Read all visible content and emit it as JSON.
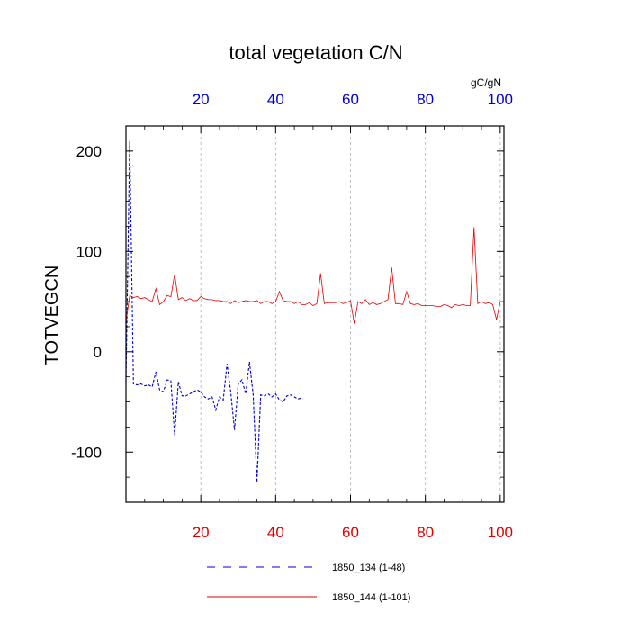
{
  "chart_data": {
    "type": "line",
    "title": "total vegetation C/N",
    "ylabel": "TOTVEGCN",
    "top_axis_label": "gC/gN",
    "xlim": [
      0,
      101
    ],
    "ylim": [
      -150,
      225
    ],
    "x_ticks": [
      "20",
      "40",
      "60",
      "80",
      "100"
    ],
    "y_ticks": [
      "200",
      "100",
      "0",
      "-100"
    ],
    "grid": "vertical dashed",
    "bottom_axis_color": "#e00000",
    "top_axis_color": "#0000d0",
    "legend_position": "bottom",
    "series": [
      {
        "name": "1850_134 (1-48)",
        "color": "#0000cc",
        "style": "dashed",
        "x": [
          0,
          1,
          2,
          3,
          4,
          5,
          6,
          7,
          8,
          9,
          10,
          11,
          12,
          13,
          14,
          15,
          16,
          17,
          18,
          19,
          20,
          21,
          22,
          23,
          24,
          25,
          26,
          27,
          28,
          29,
          30,
          31,
          32,
          33,
          34,
          35,
          36,
          37,
          38,
          39,
          40,
          41,
          42,
          43,
          44,
          45,
          46,
          47
        ],
        "y": [
          -30,
          210,
          -32,
          -33,
          -32,
          -34,
          -33,
          -35,
          -20,
          -38,
          -40,
          -28,
          -29,
          -83,
          -30,
          -44,
          -44,
          -42,
          -40,
          -38,
          -40,
          -45,
          -47,
          -45,
          -58,
          -45,
          -48,
          -12,
          -40,
          -78,
          -32,
          -28,
          -42,
          -10,
          -43,
          -130,
          -43,
          -44,
          -42,
          -45,
          -42,
          -48,
          -50,
          -44,
          -43,
          -45,
          -47,
          -46
        ]
      },
      {
        "name": "1850_144 (1-101)",
        "color": "#e00000",
        "style": "solid",
        "x": [
          0,
          1,
          2,
          3,
          4,
          5,
          6,
          7,
          8,
          9,
          10,
          11,
          12,
          13,
          14,
          15,
          16,
          17,
          18,
          19,
          20,
          21,
          22,
          23,
          24,
          25,
          26,
          27,
          28,
          29,
          30,
          31,
          32,
          33,
          34,
          35,
          36,
          37,
          38,
          39,
          40,
          41,
          42,
          43,
          44,
          45,
          46,
          47,
          48,
          49,
          50,
          51,
          52,
          53,
          54,
          55,
          56,
          57,
          58,
          59,
          60,
          61,
          62,
          63,
          64,
          65,
          66,
          67,
          68,
          69,
          70,
          71,
          72,
          73,
          74,
          75,
          76,
          77,
          78,
          79,
          80,
          81,
          82,
          83,
          84,
          85,
          86,
          87,
          88,
          89,
          90,
          91,
          92,
          93,
          94,
          95,
          96,
          97,
          98,
          99,
          100
        ],
        "y": [
          30,
          56,
          54,
          55,
          53,
          54,
          52,
          50,
          63,
          47,
          50,
          56,
          55,
          77,
          52,
          54,
          51,
          53,
          51,
          51,
          55,
          53,
          52,
          52,
          51,
          51,
          50,
          50,
          48,
          51,
          49,
          50,
          51,
          50,
          50,
          51,
          48,
          50,
          50,
          48,
          50,
          60,
          51,
          50,
          50,
          48,
          50,
          47,
          47,
          49,
          46,
          48,
          78,
          48,
          49,
          49,
          49,
          50,
          48,
          49,
          51,
          28,
          50,
          48,
          52,
          47,
          49,
          47,
          48,
          50,
          52,
          84,
          48,
          48,
          47,
          60,
          48,
          47,
          48,
          46,
          46,
          46,
          46,
          45,
          45,
          47,
          46,
          44,
          47,
          46,
          47,
          46,
          46,
          124,
          48,
          50,
          48,
          49,
          47,
          32,
          50
        ]
      }
    ]
  }
}
